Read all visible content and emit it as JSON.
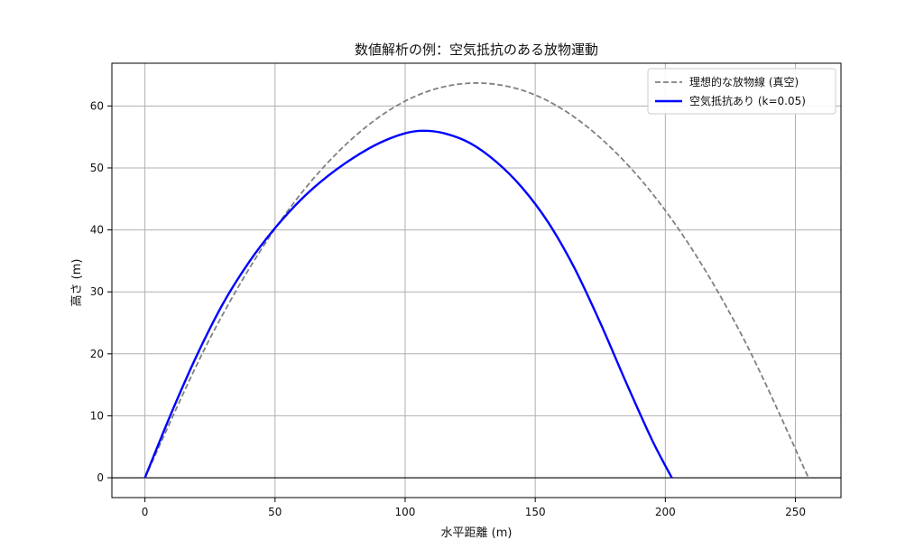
{
  "chart_data": {
    "type": "line",
    "title": "数値解析の例：空気抵抗のある放物運動",
    "xlabel": "水平距離 (m)",
    "ylabel": "高さ (m)",
    "xlim": [
      -12.7,
      267.5
    ],
    "ylim": [
      -3.2,
      66.9
    ],
    "xticks": [
      0,
      50,
      100,
      150,
      200,
      250
    ],
    "yticks": [
      0,
      10,
      20,
      30,
      40,
      50,
      60
    ],
    "grid": true,
    "legend_position": "top-right",
    "baseline_y": 0,
    "series": [
      {
        "name": "理想的な放物線 (真空)",
        "color": "#808080",
        "style": "dashed",
        "x": [
          0,
          25.5,
          51,
          76.5,
          102,
          127.5,
          153,
          178.5,
          204,
          229.5,
          255
        ],
        "y": [
          0,
          22.9,
          40.8,
          53.5,
          61.2,
          63.7,
          61.2,
          53.5,
          40.8,
          22.9,
          0
        ]
      },
      {
        "name": "空気抵抗あり (k=0.05)",
        "color": "#0000ff",
        "style": "solid",
        "x": [
          0,
          10,
          20,
          30,
          40,
          50,
          60,
          70,
          80,
          90,
          100,
          107,
          115,
          125,
          135,
          145,
          155,
          165,
          175,
          185,
          195,
          202.5
        ],
        "y": [
          0,
          10.3,
          19.8,
          28.1,
          34.8,
          40.3,
          44.9,
          48.6,
          51.6,
          54.0,
          55.6,
          56.0,
          55.6,
          54.0,
          51.0,
          46.8,
          41.2,
          33.9,
          25.0,
          15.3,
          6.0,
          0
        ]
      }
    ]
  }
}
